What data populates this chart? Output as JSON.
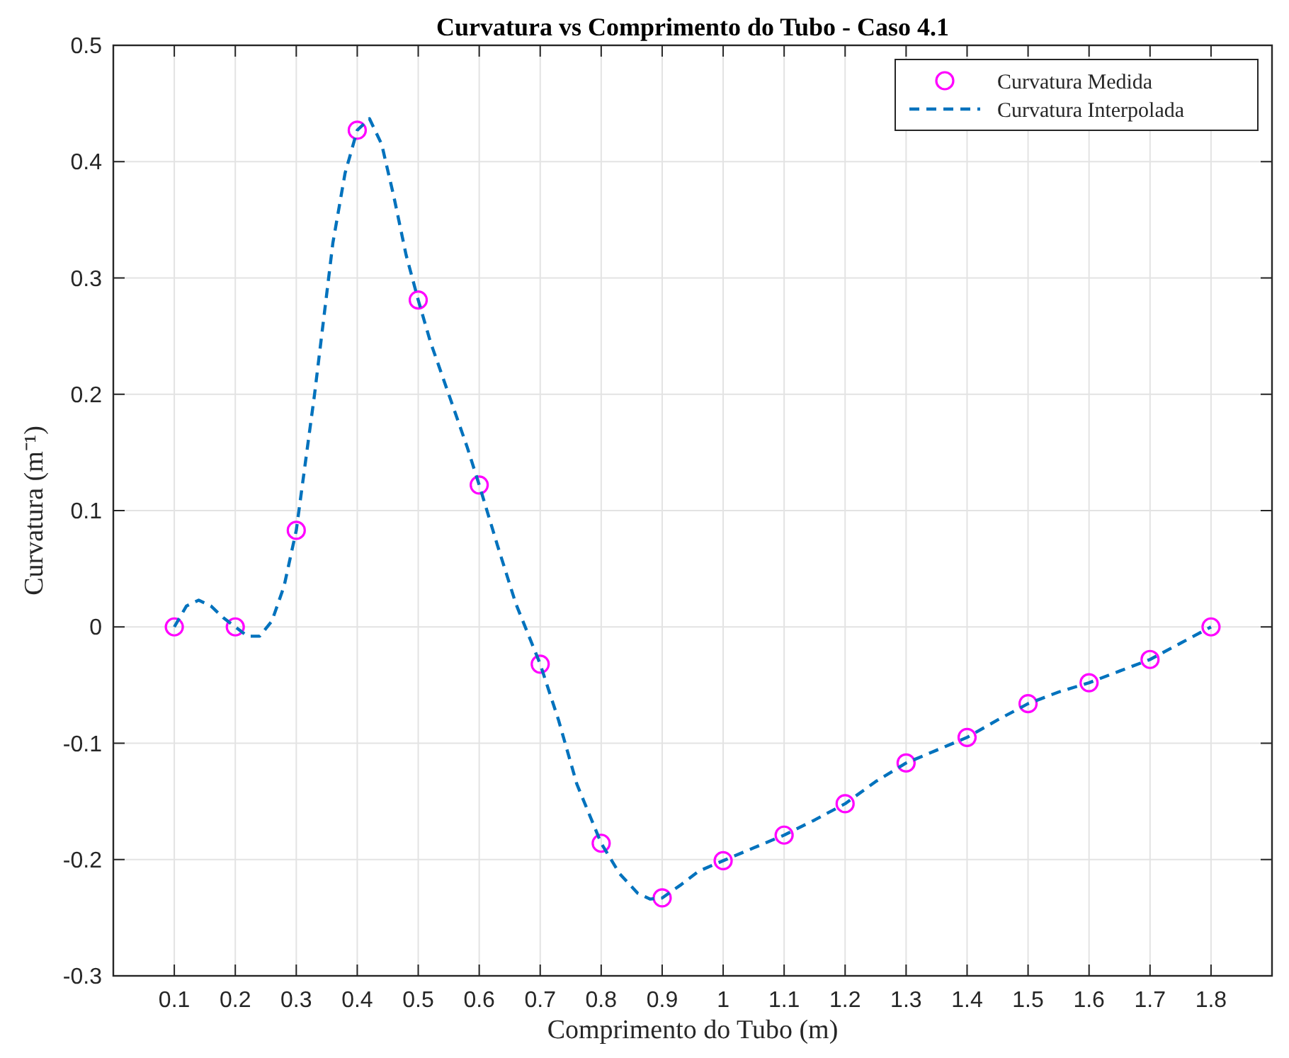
{
  "chart_data": {
    "type": "scatter",
    "title": "Curvatura vs Comprimento do Tubo - Caso 4.1",
    "xlabel": "Comprimento do Tubo (m)",
    "ylabel": "Curvatura (m⁻¹)",
    "xlim": [
      0,
      1.9
    ],
    "xticks": [
      0.1,
      0.2,
      0.3,
      0.4,
      0.5,
      0.6,
      0.7,
      0.8,
      0.9,
      1,
      1.1,
      1.2,
      1.3,
      1.4,
      1.5,
      1.6,
      1.7,
      1.8
    ],
    "ylim": [
      -0.3,
      0.5
    ],
    "yticks": [
      -0.3,
      -0.2,
      -0.1,
      0,
      0.1,
      0.2,
      0.3,
      0.4,
      0.5
    ],
    "grid": true,
    "legend": "top right",
    "series": [
      {
        "name": "Curvatura Medida",
        "marker": "circle",
        "color": "#ff00ff",
        "x": [
          0.1,
          0.2,
          0.3,
          0.4,
          0.5,
          0.6,
          0.7,
          0.8,
          0.9,
          1.0,
          1.1,
          1.2,
          1.3,
          1.4,
          1.5,
          1.6,
          1.7,
          1.8
        ],
        "values": [
          0,
          0,
          0.083,
          0.427,
          0.281,
          0.122,
          -0.032,
          -0.186,
          -0.233,
          -0.201,
          -0.179,
          -0.152,
          -0.117,
          -0.095,
          -0.066,
          -0.048,
          -0.028,
          0
        ]
      },
      {
        "name": "Curvatura Interpolada",
        "type": "line",
        "marker": "none",
        "line_style": "dashed",
        "color": "#0072bd",
        "x": [
          0.1,
          0.12,
          0.14,
          0.16,
          0.18,
          0.2,
          0.22,
          0.24,
          0.26,
          0.28,
          0.3,
          0.33,
          0.36,
          0.38,
          0.4,
          0.42,
          0.44,
          0.46,
          0.48,
          0.5,
          0.52,
          0.55,
          0.58,
          0.6,
          0.63,
          0.66,
          0.7,
          0.73,
          0.76,
          0.8,
          0.83,
          0.86,
          0.88,
          0.9,
          0.93,
          0.96,
          1.0,
          1.05,
          1.1,
          1.15,
          1.2,
          1.25,
          1.3,
          1.35,
          1.4,
          1.45,
          1.5,
          1.55,
          1.6,
          1.65,
          1.7,
          1.75,
          1.8
        ],
        "values": [
          0,
          0.018,
          0.023,
          0.018,
          0.008,
          0,
          -0.008,
          -0.008,
          0.005,
          0.035,
          0.083,
          0.2,
          0.33,
          0.39,
          0.427,
          0.437,
          0.415,
          0.37,
          0.32,
          0.281,
          0.245,
          0.2,
          0.155,
          0.122,
          0.07,
          0.02,
          -0.032,
          -0.08,
          -0.135,
          -0.186,
          -0.212,
          -0.229,
          -0.234,
          -0.233,
          -0.222,
          -0.21,
          -0.201,
          -0.19,
          -0.179,
          -0.166,
          -0.152,
          -0.133,
          -0.117,
          -0.106,
          -0.095,
          -0.08,
          -0.066,
          -0.056,
          -0.048,
          -0.038,
          -0.028,
          -0.014,
          0
        ]
      }
    ]
  }
}
